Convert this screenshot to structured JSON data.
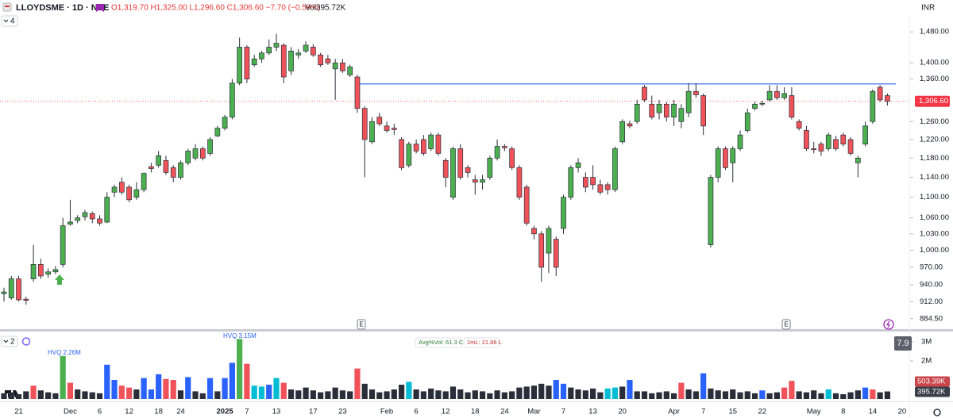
{
  "chart_data": {
    "type": "candlestick",
    "title": "LLOYDSME · 1D · NSE",
    "ohlc_text": "O1,319.70 H1,325.00 L1,296.60 C1,306.60 −7.70 (−0.59%)",
    "volume_text": "Vol395.72K",
    "currency": "INR",
    "indicator_count": 4,
    "volume_pane_count": 2,
    "hvq_labels": [
      "HVQ 2.26M",
      "HVQ 3.15M"
    ],
    "volume_stats": [
      "Avg%Vol: 61.3 Cr",
      "1mL: 21.86 L"
    ],
    "score": 7.9,
    "earnings_markers": [
      "E",
      "E"
    ],
    "log_scale": true,
    "grid": false,
    "up_color": "#4caf50",
    "down_color": "#f0525a",
    "outline_color": "#2a2e39",
    "resistance": 1348,
    "resistance_color": "#2962ff",
    "price_tag": {
      "value": 1306.6,
      "label": "1,306.60"
    },
    "price_tag_color": "#f23645",
    "ylim": [
      868,
      1491
    ],
    "yticks": [
      {
        "value": 1480,
        "label": "1,480.00"
      },
      {
        "value": 1400,
        "label": "1,400.00"
      },
      {
        "value": 1360,
        "label": "1,360.00"
      },
      {
        "value": 1260,
        "label": "1,260.00"
      },
      {
        "value": 1220,
        "label": "1,220.00"
      },
      {
        "value": 1180,
        "label": "1,180.00"
      },
      {
        "value": 1140,
        "label": "1,140.00"
      },
      {
        "value": 1100,
        "label": "1,100.00"
      },
      {
        "value": 1060,
        "label": "1,060.00"
      },
      {
        "value": 1030,
        "label": "1,030.00"
      },
      {
        "value": 1000,
        "label": "1,000.00"
      },
      {
        "value": 970,
        "label": "970.00"
      },
      {
        "value": 940,
        "label": "940.00"
      },
      {
        "value": 912,
        "label": "912.00"
      },
      {
        "value": 884.5,
        "label": "884.50"
      }
    ],
    "categories": [
      null,
      null,
      "21",
      null,
      null,
      null,
      null,
      null,
      null,
      "Dec",
      null,
      null,
      null,
      "6",
      null,
      null,
      null,
      "12",
      null,
      null,
      null,
      "18",
      null,
      null,
      "24",
      null,
      null,
      null,
      null,
      null,
      "2025",
      null,
      null,
      "7",
      null,
      null,
      null,
      "13",
      null,
      null,
      null,
      null,
      "17",
      null,
      null,
      null,
      "23",
      null,
      null,
      null,
      null,
      null,
      "Feb",
      null,
      null,
      null,
      "6",
      null,
      null,
      null,
      "12",
      null,
      null,
      null,
      "18",
      null,
      null,
      null,
      "24",
      null,
      null,
      null,
      "Mar",
      null,
      null,
      null,
      "7",
      null,
      null,
      null,
      "13",
      null,
      null,
      null,
      "20",
      null,
      null,
      null,
      null,
      null,
      null,
      "Apr",
      null,
      null,
      null,
      "7",
      null,
      null,
      null,
      "15",
      null,
      null,
      null,
      "22",
      null,
      null,
      null,
      null,
      null,
      null,
      "May",
      null,
      null,
      null,
      "8",
      null,
      null,
      null,
      "14",
      null,
      null,
      null,
      "20"
    ],
    "open": [
      925,
      918,
      950,
      916,
      950,
      975,
      958,
      962,
      975,
      1048,
      1055,
      1062,
      1068,
      1058,
      1052,
      1110,
      1130,
      1120,
      1100,
      1115,
      1162,
      1165,
      1175,
      1160,
      1140,
      1170,
      1180,
      1200,
      1190,
      1228,
      1245,
      1270,
      1350,
      1440,
      1395,
      1410,
      1425,
      1440,
      1445,
      1380,
      1420,
      1430,
      1440,
      1420,
      1410,
      1385,
      1400,
      1370,
      1365,
      1290,
      1215,
      1270,
      1250,
      1245,
      1220,
      1165,
      1210,
      1220,
      1200,
      1230,
      1175,
      1100,
      1200,
      1160,
      1135,
      1130,
      1140,
      1180,
      1205,
      1200,
      1160,
      1120,
      1040,
      1030,
      995,
      1020,
      1040,
      1100,
      1160,
      1140,
      1140,
      1125,
      1125,
      1115,
      1215,
      1255,
      1260,
      1340,
      1300,
      1280,
      1300,
      1270,
      1260,
      1280,
      1330,
      1320,
      1010,
      1140,
      1200,
      1170,
      1200,
      1240,
      1290,
      1300,
      1310,
      1330,
      1315,
      1320,
      1260,
      1240,
      1200,
      1210,
      1200,
      1220,
      1230,
      1220,
      1170,
      1210,
      1260,
      1340,
      1320,
      null,
      null
    ],
    "high": [
      935,
      955,
      955,
      920,
      1010,
      985,
      968,
      972,
      1060,
      1095,
      1065,
      1075,
      1072,
      1065,
      1110,
      1125,
      1140,
      1125,
      1130,
      1150,
      1170,
      1195,
      1185,
      1165,
      1175,
      1200,
      1210,
      1205,
      1225,
      1250,
      1275,
      1360,
      1465,
      1445,
      1420,
      1430,
      1460,
      1475,
      1450,
      1440,
      1435,
      1455,
      1448,
      1425,
      1420,
      1410,
      1410,
      1395,
      1370,
      1295,
      1270,
      1280,
      1260,
      1255,
      1225,
      1215,
      1220,
      1230,
      1235,
      1235,
      1180,
      1205,
      1210,
      1165,
      1145,
      1145,
      1185,
      1220,
      1210,
      1205,
      1165,
      1125,
      1045,
      1035,
      1045,
      1025,
      1105,
      1165,
      1180,
      1150,
      1165,
      1135,
      1130,
      1205,
      1265,
      1262,
      1310,
      1345,
      1320,
      1310,
      1305,
      1310,
      1300,
      1350,
      1350,
      1325,
      1145,
      1205,
      1205,
      1205,
      1240,
      1290,
      1305,
      1308,
      1345,
      1345,
      1340,
      1340,
      1265,
      1250,
      1215,
      1215,
      1235,
      1228,
      1235,
      1225,
      1185,
      1260,
      1335,
      1345,
      1325,
      null,
      null
    ],
    "low": [
      912,
      915,
      912,
      907,
      945,
      950,
      952,
      958,
      970,
      1045,
      1050,
      1055,
      1050,
      1045,
      1050,
      1100,
      1105,
      1090,
      1095,
      1110,
      1150,
      1160,
      1145,
      1130,
      1135,
      1165,
      1175,
      1175,
      1185,
      1225,
      1240,
      1265,
      1345,
      1350,
      1390,
      1400,
      1420,
      1430,
      1350,
      1370,
      1410,
      1425,
      1415,
      1390,
      1395,
      1310,
      1375,
      1365,
      1280,
      1140,
      1210,
      1250,
      1235,
      1230,
      1155,
      1160,
      1190,
      1185,
      1195,
      1185,
      1120,
      1095,
      1135,
      1140,
      1105,
      1115,
      1135,
      1175,
      1195,
      1155,
      1095,
      1045,
      1020,
      945,
      960,
      955,
      1030,
      1095,
      1150,
      1110,
      1115,
      1105,
      1105,
      1110,
      1210,
      1245,
      1255,
      1305,
      1265,
      1265,
      1260,
      1250,
      1245,
      1270,
      1315,
      1230,
      1005,
      1130,
      1155,
      1130,
      1195,
      1235,
      1285,
      1295,
      1305,
      1310,
      1310,
      1265,
      1240,
      1195,
      1190,
      1185,
      1195,
      1195,
      1205,
      1185,
      1140,
      1205,
      1255,
      1305,
      1296.6,
      null,
      null
    ],
    "close": [
      928,
      950,
      915,
      914,
      975,
      955,
      962,
      966,
      1045,
      1052,
      1060,
      1070,
      1058,
      1050,
      1100,
      1120,
      1110,
      1095,
      1115,
      1148,
      1158,
      1185,
      1150,
      1140,
      1170,
      1195,
      1200,
      1180,
      1220,
      1245,
      1270,
      1350,
      1440,
      1360,
      1410,
      1425,
      1440,
      1450,
      1365,
      1430,
      1425,
      1445,
      1420,
      1395,
      1400,
      1400,
      1380,
      1390,
      1290,
      1220,
      1260,
      1255,
      1240,
      1242,
      1160,
      1210,
      1195,
      1190,
      1230,
      1190,
      1140,
      1200,
      1140,
      1150,
      1130,
      1135,
      1180,
      1205,
      1202,
      1160,
      1100,
      1050,
      1030,
      970,
      1040,
      970,
      1100,
      1160,
      1170,
      1120,
      1125,
      1110,
      1115,
      1200,
      1260,
      1250,
      1300,
      1310,
      1270,
      1300,
      1270,
      1300,
      1290,
      1330,
      1322,
      1250,
      1140,
      1200,
      1160,
      1200,
      1230,
      1280,
      1300,
      1302,
      1330,
      1315,
      1325,
      1270,
      1245,
      1200,
      1198,
      1195,
      1230,
      1200,
      1210,
      1190,
      1180,
      1250,
      1330,
      1310,
      1306.6,
      null,
      null
    ],
    "volume": [
      300000,
      350000,
      250000,
      400000,
      700000,
      450000,
      350000,
      300000,
      2260000,
      850000,
      500000,
      400000,
      350000,
      300000,
      1800000,
      1000000,
      700000,
      600000,
      500000,
      1100000,
      500000,
      1300000,
      1050000,
      1000000,
      450000,
      1150000,
      400000,
      300000,
      1100000,
      400000,
      1100000,
      1900000,
      3150000,
      1850000,
      700000,
      650000,
      750000,
      1100000,
      850000,
      500000,
      450000,
      600000,
      450000,
      350000,
      400000,
      600000,
      450000,
      400000,
      1600000,
      800000,
      500000,
      350000,
      400000,
      500000,
      750000,
      900000,
      500000,
      400000,
      550000,
      450000,
      400000,
      650000,
      500000,
      350000,
      450000,
      400000,
      300000,
      450000,
      350000,
      400000,
      600000,
      650000,
      700000,
      800000,
      700000,
      1000000,
      800000,
      600000,
      500000,
      450000,
      550000,
      350000,
      550000,
      600000,
      650000,
      1000000,
      400000,
      400000,
      300000,
      350000,
      400000,
      300000,
      850000,
      500000,
      400000,
      1350000,
      550000,
      450000,
      400000,
      500000,
      350000,
      400000,
      300000,
      450000,
      300000,
      350000,
      600000,
      950000,
      400000,
      350000,
      450000,
      300000,
      500000,
      300000,
      250000,
      350000,
      450000,
      600000,
      500000,
      350000,
      395720,
      null,
      null
    ],
    "volume_colors": [
      "k",
      "k",
      "k",
      "k",
      "r",
      "k",
      "k",
      "k",
      "g",
      "r",
      "k",
      "k",
      "k",
      "k",
      "b",
      "b",
      "r",
      "r",
      "k",
      "b",
      "b",
      "b",
      "r",
      "r",
      "k",
      "b",
      "k",
      "k",
      "b",
      "k",
      "b",
      "b",
      "g",
      "r",
      "c",
      "c",
      "b",
      "c",
      "r",
      "k",
      "k",
      "k",
      "k",
      "k",
      "k",
      "k",
      "k",
      "k",
      "r",
      "k",
      "k",
      "k",
      "k",
      "k",
      "k",
      "c",
      "k",
      "k",
      "k",
      "k",
      "k",
      "k",
      "k",
      "k",
      "k",
      "k",
      "k",
      "k",
      "k",
      "k",
      "k",
      "k",
      "k",
      "k",
      "k",
      "b",
      "b",
      "k",
      "k",
      "k",
      "k",
      "k",
      "c",
      "c",
      "k",
      "b",
      "k",
      "k",
      "k",
      "k",
      "k",
      "k",
      "r",
      "k",
      "k",
      "b",
      "k",
      "k",
      "k",
      "k",
      "k",
      "k",
      "k",
      "b",
      "k",
      "k",
      "r",
      "r",
      "k",
      "k",
      "k",
      "k",
      "c",
      "k",
      "k",
      "k",
      "k",
      "b",
      "r",
      "k",
      "k",
      null,
      null
    ],
    "volume_palette": {
      "k": "#2a2e39",
      "r": "#f0525a",
      "g": "#4caf50",
      "b": "#2962ff",
      "c": "#00bcd4"
    },
    "vylim": [
      0,
      3460000
    ],
    "vyticks": [
      {
        "value": 3000000,
        "label": "3M"
      },
      {
        "value": 2000000,
        "label": "2M"
      }
    ],
    "volume_tags": [
      {
        "value": 503390,
        "label": "503.39K"
      },
      {
        "value": 395720,
        "label": "395.72K"
      }
    ]
  }
}
